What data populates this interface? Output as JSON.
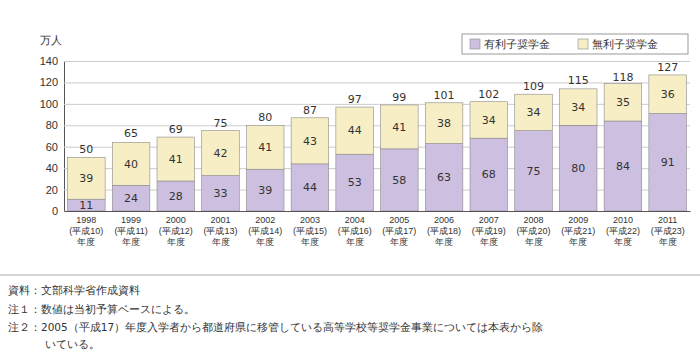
{
  "chart_data": {
    "type": "bar",
    "stacked": true,
    "data_labels": true,
    "grid": true,
    "legend": "top-right",
    "y_label": "万人",
    "categories": [
      "1998\n(平成10)\n年度",
      "1999\n(平成11)\n年度",
      "2000\n(平成12)\n年度",
      "2001\n(平成13)\n年度",
      "2002\n(平成14)\n年度",
      "2003\n(平成15)\n年度",
      "2004\n(平成16)\n年度",
      "2005\n(平成17)\n年度",
      "2006\n(平成18)\n年度",
      "2007\n(平成19)\n年度",
      "2008\n(平成20)\n年度",
      "2009\n(平成21)\n年度",
      "2010\n(平成22)\n年度",
      "2011\n(平成23)\n年度"
    ],
    "series": [
      {
        "name": "有利子奨学金",
        "color": "#cdbfe0",
        "values": [
          11,
          24,
          28,
          33,
          39,
          44,
          53,
          58,
          63,
          68,
          75,
          80,
          84,
          91
        ]
      },
      {
        "name": "無利子奨学金",
        "color": "#f7eec6",
        "values": [
          39,
          40,
          41,
          42,
          41,
          43,
          44,
          41,
          38,
          34,
          34,
          34,
          35,
          36
        ]
      }
    ],
    "totals": [
      50,
      65,
      69,
      75,
      80,
      87,
      97,
      99,
      101,
      102,
      109,
      115,
      118,
      127
    ],
    "ylim": [
      0,
      140
    ],
    "yticks": [
      0,
      20,
      40,
      60,
      80,
      100,
      120,
      140
    ],
    "notes": [
      "資料：文部科学省作成資料",
      "注１：数値は当初予算ベースによる。",
      "注２：2005（平成17）年度入学者から都道府県に移管している高等学校等奨学金事業については本表から除",
      "いている。"
    ]
  }
}
